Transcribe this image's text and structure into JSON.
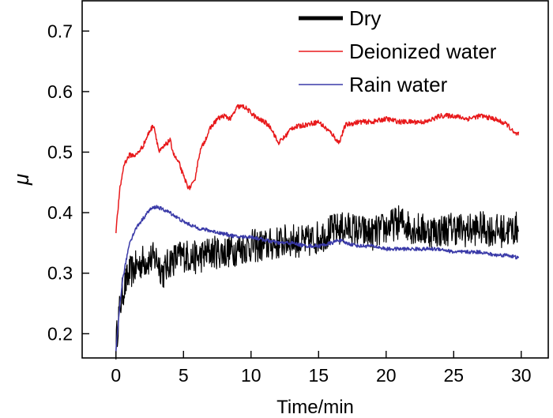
{
  "chart_data": {
    "type": "line",
    "title": "",
    "xlabel": "Time/min",
    "ylabel": "μ",
    "xlim": [
      -2.5,
      32
    ],
    "ylim": [
      0.16,
      0.75
    ],
    "x_ticks": [
      0,
      5,
      10,
      15,
      20,
      25,
      30
    ],
    "x_tick_labels": [
      "0",
      "5",
      "10",
      "15",
      "20",
      "25",
      "30"
    ],
    "y_ticks": [
      0.2,
      0.3,
      0.4,
      0.5,
      0.6,
      0.7
    ],
    "y_tick_labels": [
      "0.2",
      "0.3",
      "0.4",
      "0.5",
      "0.6",
      "0.7"
    ],
    "legend_position": "top-right",
    "series": [
      {
        "name": "Dry",
        "color": "#000000",
        "noise": 0.028,
        "x": [
          0.0,
          0.2,
          0.5,
          1.0,
          1.5,
          2.0,
          3.0,
          3.5,
          4.0,
          5.0,
          6.0,
          7.0,
          8.0,
          9.0,
          10.0,
          11.0,
          12.0,
          13.0,
          14.0,
          15.0,
          16.0,
          17.0,
          18.0,
          19.0,
          20.0,
          21.0,
          22.0,
          23.0,
          24.0,
          25.0,
          26.0,
          27.0,
          28.0,
          29.0,
          29.8
        ],
        "y": [
          0.18,
          0.23,
          0.27,
          0.3,
          0.31,
          0.32,
          0.325,
          0.3,
          0.32,
          0.33,
          0.325,
          0.335,
          0.335,
          0.34,
          0.345,
          0.345,
          0.35,
          0.355,
          0.35,
          0.36,
          0.37,
          0.375,
          0.37,
          0.365,
          0.375,
          0.385,
          0.375,
          0.37,
          0.37,
          0.375,
          0.37,
          0.375,
          0.37,
          0.37,
          0.375
        ]
      },
      {
        "name": "Deionized water",
        "color": "#e8191b",
        "noise": 0.004,
        "x": [
          0.0,
          0.3,
          0.6,
          1.0,
          1.5,
          2.0,
          2.5,
          2.8,
          3.2,
          3.6,
          4.0,
          4.3,
          4.7,
          5.0,
          5.4,
          5.8,
          6.2,
          6.6,
          7.0,
          7.5,
          8.0,
          8.5,
          9.0,
          9.5,
          10.0,
          10.5,
          11.0,
          11.5,
          12.0,
          12.5,
          13.0,
          14.0,
          15.0,
          16.0,
          16.5,
          17.0,
          18.0,
          19.0,
          20.0,
          21.0,
          22.0,
          23.0,
          24.0,
          25.0,
          26.0,
          27.0,
          28.0,
          29.0,
          29.5,
          29.8
        ],
        "y": [
          0.37,
          0.44,
          0.48,
          0.495,
          0.495,
          0.51,
          0.535,
          0.545,
          0.5,
          0.51,
          0.52,
          0.495,
          0.48,
          0.46,
          0.44,
          0.45,
          0.5,
          0.52,
          0.54,
          0.555,
          0.56,
          0.555,
          0.575,
          0.575,
          0.565,
          0.555,
          0.55,
          0.54,
          0.515,
          0.525,
          0.54,
          0.545,
          0.55,
          0.53,
          0.515,
          0.545,
          0.55,
          0.55,
          0.555,
          0.55,
          0.55,
          0.55,
          0.56,
          0.56,
          0.555,
          0.56,
          0.555,
          0.545,
          0.53,
          0.53
        ]
      },
      {
        "name": "Rain water",
        "color": "#3a3aa8",
        "noise": 0.003,
        "x": [
          0.0,
          0.3,
          0.5,
          1.0,
          1.5,
          2.0,
          2.5,
          3.0,
          3.5,
          4.0,
          5.0,
          6.0,
          7.0,
          8.0,
          9.0,
          10.0,
          11.0,
          12.0,
          13.0,
          14.0,
          15.0,
          16.0,
          16.5,
          17.0,
          18.0,
          19.0,
          20.0,
          21.0,
          22.0,
          23.0,
          24.0,
          25.0,
          26.0,
          27.0,
          28.0,
          29.0,
          29.8
        ],
        "y": [
          0.17,
          0.25,
          0.29,
          0.35,
          0.375,
          0.39,
          0.405,
          0.41,
          0.405,
          0.4,
          0.385,
          0.375,
          0.37,
          0.365,
          0.36,
          0.36,
          0.355,
          0.35,
          0.35,
          0.345,
          0.345,
          0.35,
          0.355,
          0.35,
          0.345,
          0.345,
          0.34,
          0.34,
          0.34,
          0.34,
          0.34,
          0.335,
          0.335,
          0.335,
          0.33,
          0.33,
          0.325
        ]
      }
    ]
  }
}
